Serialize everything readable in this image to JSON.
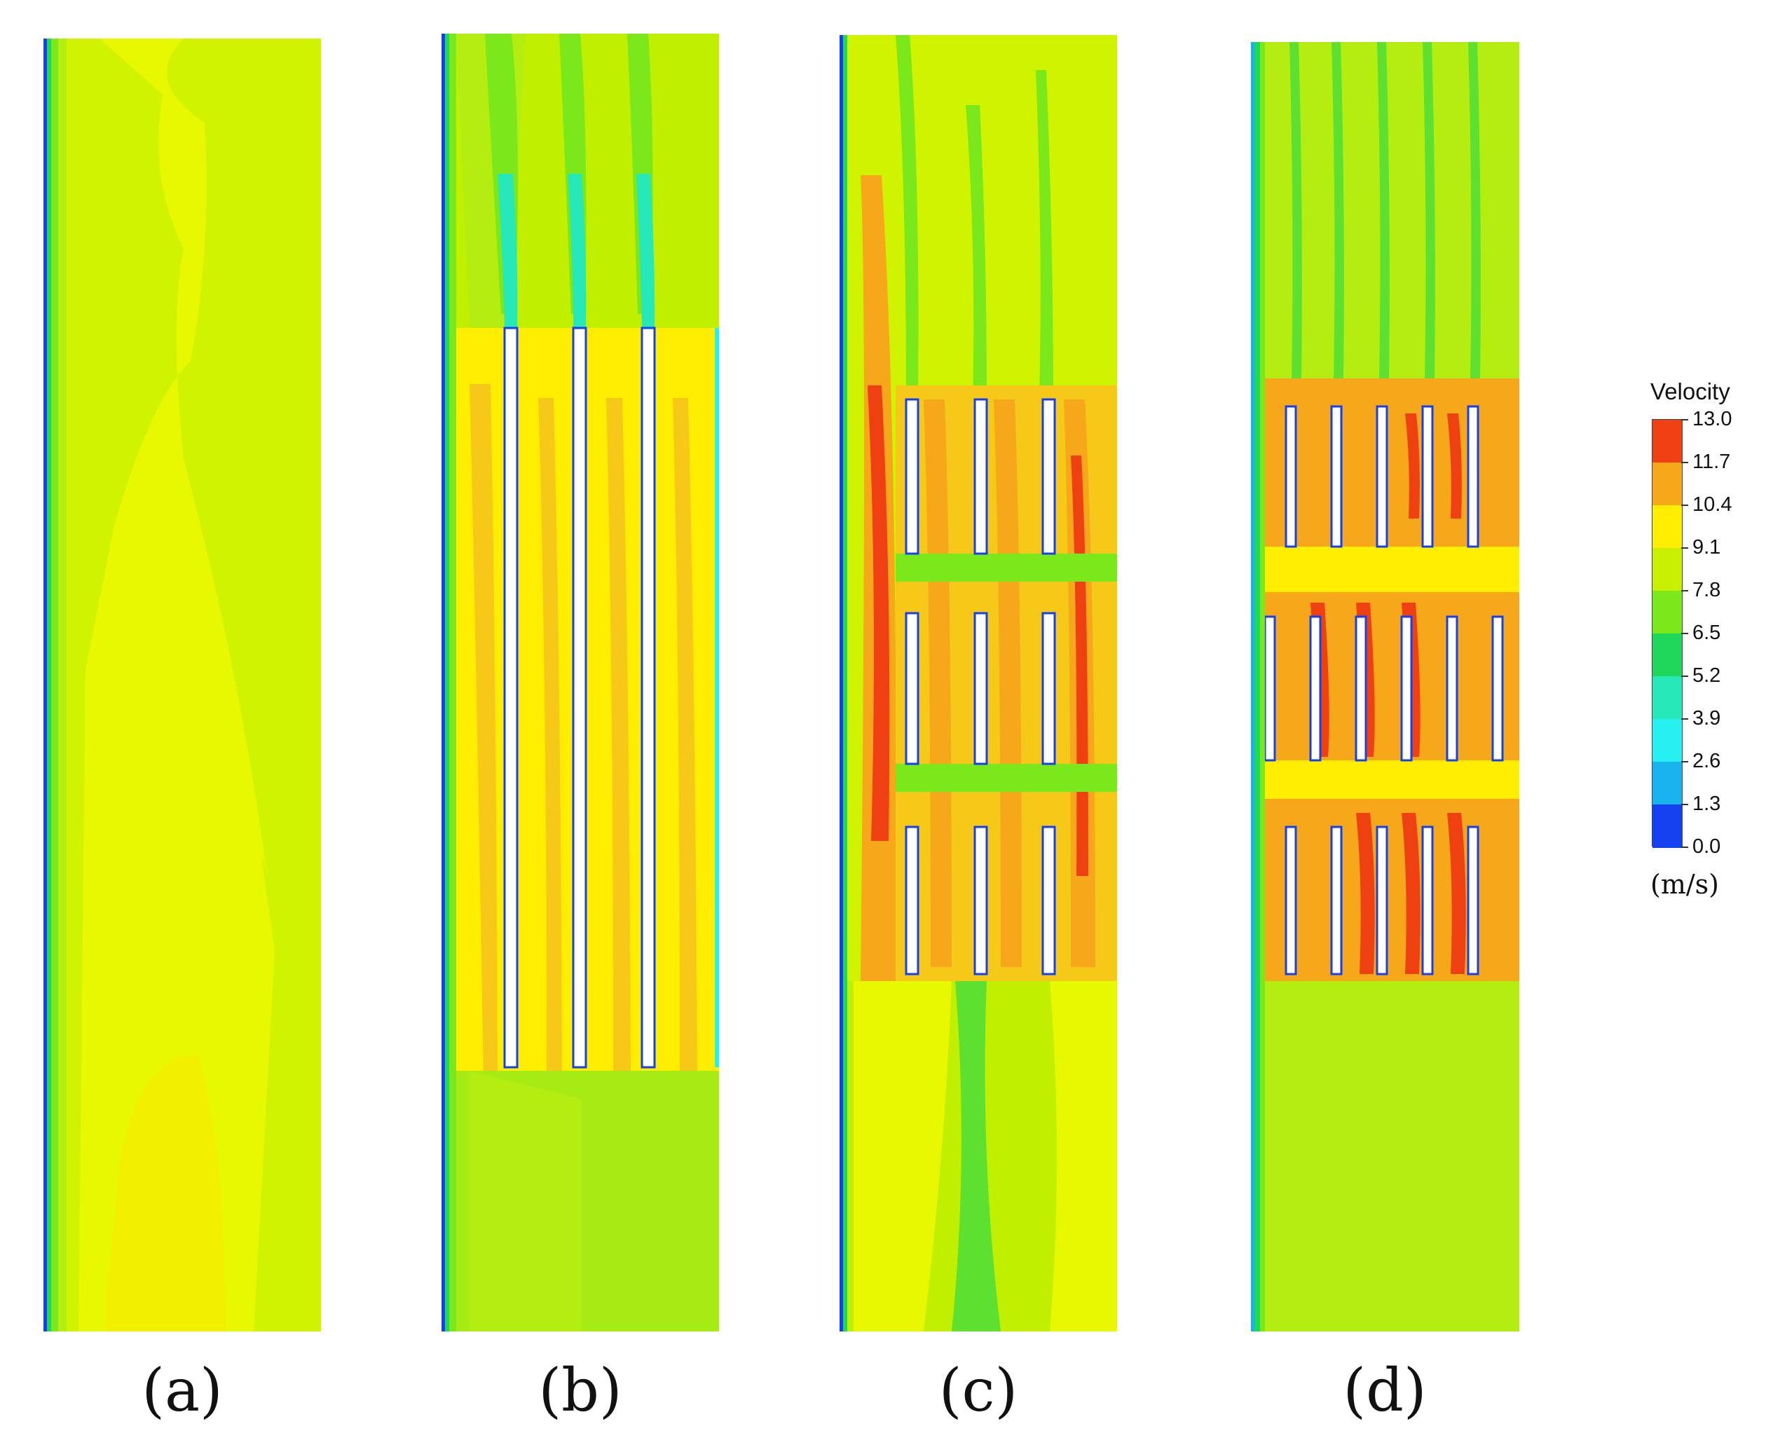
{
  "panels": [
    {
      "id": "a",
      "label": "(a)"
    },
    {
      "id": "b",
      "label": "(b)"
    },
    {
      "id": "c",
      "label": "(c)"
    },
    {
      "id": "d",
      "label": "(d)"
    }
  ],
  "colorbar": {
    "title": "Velocity",
    "unit": "(m/s)",
    "ticks": [
      "13.0",
      "11.7",
      "10.4",
      "9.1",
      "7.8",
      "6.5",
      "5.2",
      "3.9",
      "2.6",
      "1.3",
      "0.0"
    ],
    "colors": [
      "#ee4010",
      "#f6a81a",
      "#ffee00",
      "#c8f000",
      "#7ae81a",
      "#1ed85a",
      "#27e8b8",
      "#27f0f0",
      "#18b4f0",
      "#1440f0"
    ]
  }
}
